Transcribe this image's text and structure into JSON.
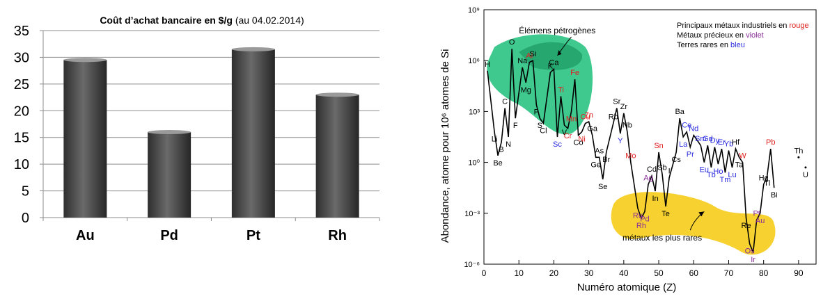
{
  "chart_data": [
    {
      "type": "bar",
      "title_bold": "Coût d’achat bancaire en $/g",
      "title_note": "(au 04.02.2014)",
      "categories": [
        "Au",
        "Pd",
        "Pt",
        "Rh"
      ],
      "values": [
        29.5,
        16,
        31.5,
        23
      ],
      "ylim": [
        0,
        35
      ],
      "yticks": [
        "0",
        "5",
        "10",
        "15",
        "20",
        "25",
        "30",
        "35"
      ],
      "grid": true,
      "bar_color": "#5a5a5a"
    },
    {
      "type": "line",
      "xlabel": "Numéro atomique (Z)",
      "ylabel": "Abondance, atome pour 10⁶ atomes de Si",
      "xlim": [
        0,
        95
      ],
      "ylim": [
        -6,
        9
      ],
      "yscale": "log10",
      "xticks": [
        "0",
        "10",
        "20",
        "30",
        "40",
        "50",
        "60",
        "70",
        "80",
        "90"
      ],
      "yticks": [
        "10⁻⁶",
        "10⁻³",
        "10⁰",
        "10³",
        "10⁶",
        "10⁹"
      ],
      "legend": {
        "line1_prefix": "Principaux métaux industriels en ",
        "line1_word": "rouge",
        "line2_prefix": "Métaux précieux en ",
        "line2_word": "violet",
        "line3_prefix": "Terres rares en ",
        "line3_word": "bleu"
      },
      "regions": {
        "petrogenic": "Élémens pétrogènes",
        "rarest": "métaux les plus rares"
      },
      "colors": {
        "industrial": "#e02020",
        "precious": "#8a2a9a",
        "rare_earth": "#2a2ae0",
        "other": "#000000",
        "petro_fill": "#1fbf7a",
        "rare_fill": "#f5cc1a"
      },
      "elements": [
        {
          "z": 1,
          "sym": "H",
          "log": 5.4,
          "cat": "other"
        },
        {
          "z": 3,
          "sym": "Li",
          "log": 1.8,
          "cat": "other"
        },
        {
          "z": 4,
          "sym": "Be",
          "log": 0.4,
          "cat": "other"
        },
        {
          "z": 5,
          "sym": "B",
          "log": 1.2,
          "cat": "other"
        },
        {
          "z": 6,
          "sym": "C",
          "log": 3.2,
          "cat": "other"
        },
        {
          "z": 7,
          "sym": "N",
          "log": 1.5,
          "cat": "other"
        },
        {
          "z": 8,
          "sym": "O",
          "log": 6.7,
          "cat": "other"
        },
        {
          "z": 9,
          "sym": "F",
          "log": 2.6,
          "cat": "other"
        },
        {
          "z": 11,
          "sym": "Na",
          "log": 5.6,
          "cat": "other"
        },
        {
          "z": 12,
          "sym": "Mg",
          "log": 4.7,
          "cat": "other"
        },
        {
          "z": 13,
          "sym": "Al",
          "log": 5.9,
          "cat": "industrial"
        },
        {
          "z": 14,
          "sym": "Si",
          "log": 6.0,
          "cat": "other"
        },
        {
          "z": 15,
          "sym": "P",
          "log": 3.4,
          "cat": "other"
        },
        {
          "z": 16,
          "sym": "S",
          "log": 2.6,
          "cat": "other"
        },
        {
          "z": 17,
          "sym": "Cl",
          "log": 2.3,
          "cat": "other"
        },
        {
          "z": 19,
          "sym": "K",
          "log": 5.3,
          "cat": "other"
        },
        {
          "z": 20,
          "sym": "Ca",
          "log": 5.5,
          "cat": "other"
        },
        {
          "z": 21,
          "sym": "Sc",
          "log": 1.5,
          "cat": "rare_earth"
        },
        {
          "z": 22,
          "sym": "Ti",
          "log": 3.9,
          "cat": "industrial"
        },
        {
          "z": 23,
          "sym": "V",
          "log": 2.2,
          "cat": "other"
        },
        {
          "z": 24,
          "sym": "Cr",
          "log": 2.0,
          "cat": "industrial"
        },
        {
          "z": 25,
          "sym": "Mn",
          "log": 3.0,
          "cat": "industrial"
        },
        {
          "z": 26,
          "sym": "Fe",
          "log": 4.9,
          "cat": "industrial"
        },
        {
          "z": 27,
          "sym": "Co",
          "log": 1.6,
          "cat": "other"
        },
        {
          "z": 28,
          "sym": "Ni",
          "log": 1.8,
          "cat": "industrial"
        },
        {
          "z": 29,
          "sym": "Cu",
          "log": 2.3,
          "cat": "industrial"
        },
        {
          "z": 30,
          "sym": "Zn",
          "log": 2.4,
          "cat": "industrial"
        },
        {
          "z": 31,
          "sym": "Ga",
          "log": 1.6,
          "cat": "other"
        },
        {
          "z": 32,
          "sym": "Ge",
          "log": 0.3,
          "cat": "other"
        },
        {
          "z": 33,
          "sym": "As",
          "log": 0.3,
          "cat": "other"
        },
        {
          "z": 34,
          "sym": "Se",
          "log": -1.0,
          "cat": "other"
        },
        {
          "z": 35,
          "sym": "Br",
          "log": 0.6,
          "cat": "other"
        },
        {
          "z": 37,
          "sym": "Rb",
          "log": 2.3,
          "cat": "other"
        },
        {
          "z": 38,
          "sym": "Sr",
          "log": 3.2,
          "cat": "other"
        },
        {
          "z": 39,
          "sym": "Y",
          "log": 1.7,
          "cat": "rare_earth"
        },
        {
          "z": 40,
          "sym": "Zr",
          "log": 2.9,
          "cat": "other"
        },
        {
          "z": 41,
          "sym": "Nb",
          "log": 1.8,
          "cat": "other"
        },
        {
          "z": 42,
          "sym": "Mo",
          "log": 0.0,
          "cat": "industrial"
        },
        {
          "z": 44,
          "sym": "Ru",
          "log": -2.7,
          "cat": "precious"
        },
        {
          "z": 45,
          "sym": "Rh",
          "log": -3.3,
          "cat": "precious"
        },
        {
          "z": 46,
          "sym": "Pd",
          "log": -2.9,
          "cat": "precious"
        },
        {
          "z": 47,
          "sym": "Ag",
          "log": -1.3,
          "cat": "precious"
        },
        {
          "z": 48,
          "sym": "Cd",
          "log": -0.8,
          "cat": "other"
        },
        {
          "z": 49,
          "sym": "In",
          "log": -1.7,
          "cat": "other"
        },
        {
          "z": 50,
          "sym": "Sn",
          "log": 0.6,
          "cat": "industrial"
        },
        {
          "z": 51,
          "sym": "Sb",
          "log": -0.7,
          "cat": "other"
        },
        {
          "z": 52,
          "sym": "Te",
          "log": -2.6,
          "cat": "other"
        },
        {
          "z": 53,
          "sym": "I",
          "log": -0.9,
          "cat": "other"
        },
        {
          "z": 55,
          "sym": "Cs",
          "log": 0.6,
          "cat": "other"
        },
        {
          "z": 56,
          "sym": "Ba",
          "log": 2.6,
          "cat": "other"
        },
        {
          "z": 57,
          "sym": "La",
          "log": 1.5,
          "cat": "rare_earth"
        },
        {
          "z": 58,
          "sym": "Ce",
          "log": 1.8,
          "cat": "rare_earth"
        },
        {
          "z": 59,
          "sym": "Pr",
          "log": 0.9,
          "cat": "rare_earth"
        },
        {
          "z": 60,
          "sym": "Nd",
          "log": 1.6,
          "cat": "rare_earth"
        },
        {
          "z": 62,
          "sym": "Sm",
          "log": 1.0,
          "cat": "rare_earth"
        },
        {
          "z": 63,
          "sym": "Eu",
          "log": 0.0,
          "cat": "rare_earth"
        },
        {
          "z": 64,
          "sym": "Gd",
          "log": 1.0,
          "cat": "rare_earth"
        },
        {
          "z": 65,
          "sym": "Tb",
          "log": -0.3,
          "cat": "rare_earth"
        },
        {
          "z": 66,
          "sym": "Dy",
          "log": 0.9,
          "cat": "rare_earth"
        },
        {
          "z": 67,
          "sym": "Ho",
          "log": -0.1,
          "cat": "rare_earth"
        },
        {
          "z": 68,
          "sym": "Er",
          "log": 0.8,
          "cat": "rare_earth"
        },
        {
          "z": 69,
          "sym": "Tm",
          "log": -0.6,
          "cat": "rare_earth"
        },
        {
          "z": 70,
          "sym": "Yb",
          "log": 0.7,
          "cat": "rare_earth"
        },
        {
          "z": 71,
          "sym": "Lu",
          "log": -0.3,
          "cat": "rare_earth"
        },
        {
          "z": 72,
          "sym": "Hf",
          "log": 0.8,
          "cat": "other"
        },
        {
          "z": 73,
          "sym": "Ta",
          "log": 0.3,
          "cat": "other"
        },
        {
          "z": 74,
          "sym": "W",
          "log": 0.0,
          "cat": "industrial"
        },
        {
          "z": 75,
          "sym": "Re",
          "log": -3.3,
          "cat": "other"
        },
        {
          "z": 76,
          "sym": "Os",
          "log": -4.8,
          "cat": "precious"
        },
        {
          "z": 77,
          "sym": "Ir",
          "log": -5.3,
          "cat": "precious"
        },
        {
          "z": 78,
          "sym": "Pt",
          "log": -3.4,
          "cat": "precious"
        },
        {
          "z": 79,
          "sym": "Au",
          "log": -3.0,
          "cat": "precious"
        },
        {
          "z": 81,
          "sym": "Tl",
          "log": -0.8,
          "cat": "other"
        },
        {
          "z": 80,
          "sym": "Hg",
          "log": -1.3,
          "cat": "other"
        },
        {
          "z": 82,
          "sym": "Pb",
          "log": 0.8,
          "cat": "industrial"
        },
        {
          "z": 83,
          "sym": "Bi",
          "log": -1.5,
          "cat": "other"
        },
        {
          "z": 90,
          "sym": "Th",
          "log": 0.3,
          "cat": "other"
        },
        {
          "z": 92,
          "sym": "U",
          "log": -0.3,
          "cat": "other"
        }
      ]
    }
  ]
}
